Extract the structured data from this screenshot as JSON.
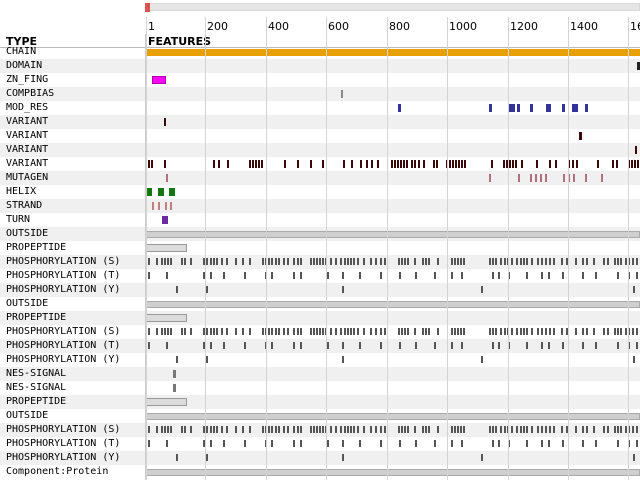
{
  "ruler": {
    "ticks": [
      "1",
      "200",
      "400",
      "600",
      "800",
      "1000",
      "1200",
      "1400",
      "16"
    ]
  },
  "headers": {
    "type": "TYPE",
    "features": "FEATURES"
  },
  "rows": [
    {
      "label": "CHAIN"
    },
    {
      "label": "DOMAIN"
    },
    {
      "label": "ZN_FING"
    },
    {
      "label": "COMPBIAS"
    },
    {
      "label": "MOD_RES"
    },
    {
      "label": "VARIANT"
    },
    {
      "label": "VARIANT"
    },
    {
      "label": "VARIANT"
    },
    {
      "label": "VARIANT"
    },
    {
      "label": "MUTAGEN"
    },
    {
      "label": "HELIX"
    },
    {
      "label": "STRAND"
    },
    {
      "label": "TURN"
    },
    {
      "label": "OUTSIDE"
    },
    {
      "label": "PROPEPTIDE"
    },
    {
      "label": "PHOSPHORYLATION (S)"
    },
    {
      "label": "PHOSPHORYLATION (T)"
    },
    {
      "label": "PHOSPHORYLATION (Y)"
    },
    {
      "label": "OUTSIDE"
    },
    {
      "label": "PROPEPTIDE"
    },
    {
      "label": "PHOSPHORYLATION (S)"
    },
    {
      "label": "PHOSPHORYLATION (T)"
    },
    {
      "label": "PHOSPHORYLATION (Y)"
    },
    {
      "label": "NES-SIGNAL"
    },
    {
      "label": "NES-SIGNAL"
    },
    {
      "label": "PROPEPTIDE"
    },
    {
      "label": "OUTSIDE"
    },
    {
      "label": "PHOSPHORYLATION (S)"
    },
    {
      "label": "PHOSPHORYLATION (T)"
    },
    {
      "label": "PHOSPHORYLATION (Y)"
    },
    {
      "label": "Component:Protein"
    }
  ],
  "colors": {
    "chain": "#e8a000",
    "zn_fing": "#ff00ff",
    "mod_res": "#333399",
    "variant": "#3a0a0a",
    "mutagen": "#b07080",
    "helix": "#117711",
    "strand": "#c08080",
    "turn": "#6a2aa0",
    "outside": "#cfcfcf",
    "phospho": "#555555"
  }
}
